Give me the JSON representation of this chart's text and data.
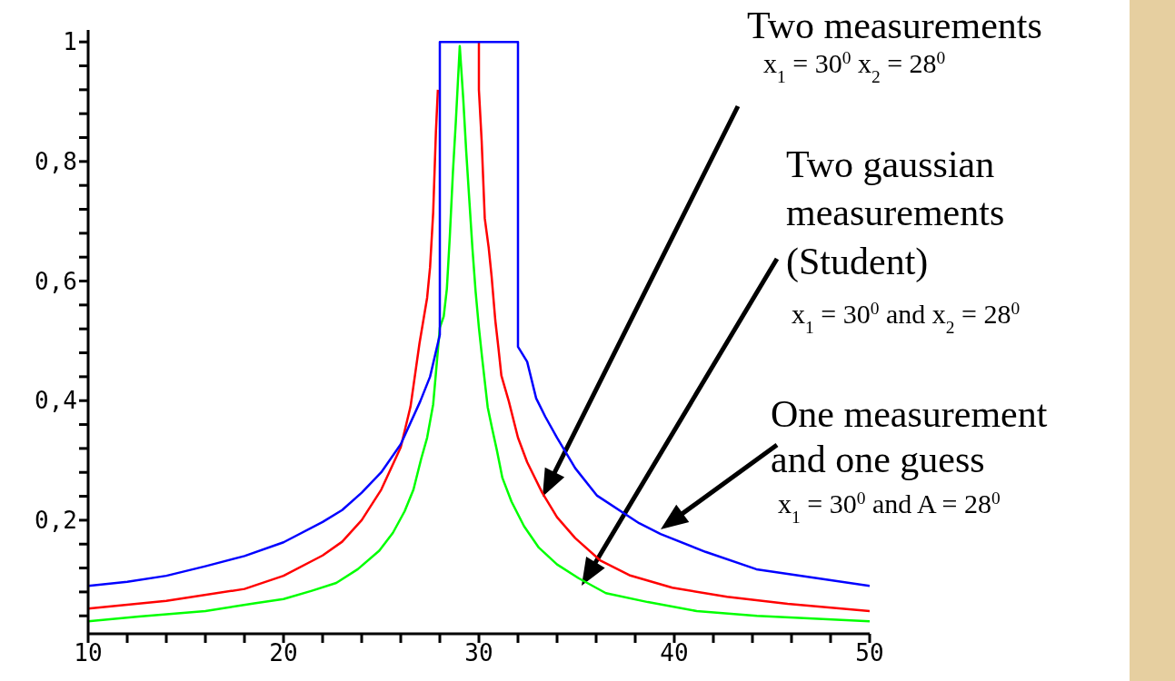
{
  "chart_data": {
    "type": "line",
    "xlim": [
      10,
      50
    ],
    "ylim": [
      0.01,
      1.02
    ],
    "xticks": [
      10,
      {
        "value": 12,
        "label": null
      },
      {
        "value": 14,
        "label": null
      },
      {
        "value": 16,
        "label": null
      },
      {
        "value": 18,
        "label": null
      },
      20,
      {
        "value": 22,
        "label": null
      },
      {
        "value": 24,
        "label": null
      },
      {
        "value": 26,
        "label": null
      },
      {
        "value": 28,
        "label": null
      },
      30,
      {
        "value": 32,
        "label": null
      },
      {
        "value": 34,
        "label": null
      },
      {
        "value": 36,
        "label": null
      },
      {
        "value": 38,
        "label": null
      },
      40,
      {
        "value": 42,
        "label": null
      },
      {
        "value": 44,
        "label": null
      },
      {
        "value": 46,
        "label": null
      },
      {
        "value": 48,
        "label": null
      },
      50
    ],
    "yticks": [
      {
        "value": 0.04,
        "label": null
      },
      {
        "value": 0.08,
        "label": null
      },
      {
        "value": 0.12,
        "label": null
      },
      {
        "value": 0.16,
        "label": null
      },
      {
        "value": 0.2,
        "label": "0,2"
      },
      {
        "value": 0.24,
        "label": null
      },
      {
        "value": 0.28,
        "label": null
      },
      {
        "value": 0.32,
        "label": null
      },
      {
        "value": 0.36,
        "label": null
      },
      {
        "value": 0.4,
        "label": "0,4"
      },
      {
        "value": 0.44,
        "label": null
      },
      {
        "value": 0.48,
        "label": null
      },
      {
        "value": 0.52,
        "label": null
      },
      {
        "value": 0.56,
        "label": null
      },
      {
        "value": 0.6,
        "label": "0,6"
      },
      {
        "value": 0.64,
        "label": null
      },
      {
        "value": 0.68,
        "label": null
      },
      {
        "value": 0.72,
        "label": null
      },
      {
        "value": 0.76,
        "label": null
      },
      {
        "value": 0.8,
        "label": "0,8"
      },
      {
        "value": 0.84,
        "label": null
      },
      {
        "value": 0.88,
        "label": null
      },
      {
        "value": 0.92,
        "label": null
      },
      {
        "value": 0.96,
        "label": null
      },
      1
    ],
    "series": [
      {
        "color": "#0000ff",
        "x": [
          10,
          12,
          14,
          16,
          18,
          20,
          22,
          23,
          24,
          25,
          26,
          27,
          27.5,
          28,
          28,
          32,
          32,
          32.47,
          32.93,
          33.4,
          34,
          34.93,
          36.05,
          38.2,
          39.3,
          41.6,
          44.2,
          47.3,
          50
        ],
        "values": [
          0.09,
          0.097,
          0.107,
          0.123,
          0.14,
          0.163,
          0.197,
          0.217,
          0.246,
          0.28,
          0.327,
          0.399,
          0.44,
          0.51,
          1,
          1,
          0.49,
          0.465,
          0.404,
          0.373,
          0.338,
          0.287,
          0.241,
          0.195,
          0.177,
          0.147,
          0.118,
          0.103,
          0.09
        ]
      },
      {
        "color": "#ff0000",
        "x": [
          10,
          14,
          18,
          20,
          22,
          23,
          24,
          25,
          26,
          26.5,
          26.96,
          27.35,
          27.5,
          27.66,
          27.8,
          27.9,
          28,
          30,
          30,
          30.14,
          30.3,
          30.5,
          30.65,
          30.84,
          31,
          31.15,
          31.53,
          32,
          32.47,
          33.24,
          34,
          34.93,
          36.2,
          37.7,
          39.9,
          42.7,
          45.8,
          50
        ],
        "values": [
          0.052,
          0.065,
          0.085,
          0.107,
          0.141,
          0.164,
          0.2,
          0.251,
          0.322,
          0.39,
          0.496,
          0.572,
          0.623,
          0.715,
          0.85,
          0.92,
          null,
          1,
          0.92,
          0.835,
          0.705,
          0.656,
          0.608,
          0.534,
          0.488,
          0.442,
          0.399,
          0.338,
          0.297,
          0.246,
          0.205,
          0.17,
          0.133,
          0.108,
          0.087,
          0.072,
          0.06,
          0.048
        ]
      },
      {
        "color": "#00ff00",
        "x": [
          10,
          12.6,
          16,
          18.5,
          20,
          21.45,
          22.7,
          23.8,
          24.9,
          25.6,
          26.2,
          26.65,
          27.04,
          27.35,
          27.66,
          27.81,
          28,
          28.2,
          28.36,
          28.51,
          28.67,
          28.82,
          29.02,
          29.2,
          29.35,
          29.52,
          29.67,
          29.83,
          30,
          30.17,
          30.45,
          30.68,
          30.92,
          31.2,
          31.67,
          32.31,
          33.07,
          34,
          35.1,
          36.5,
          38.65,
          41.15,
          44.23,
          50
        ],
        "values": [
          0.031,
          0.039,
          0.048,
          0.061,
          0.068,
          0.082,
          0.095,
          0.118,
          0.149,
          0.179,
          0.215,
          0.251,
          0.302,
          0.338,
          0.394,
          0.45,
          0.522,
          0.541,
          0.587,
          0.674,
          0.782,
          0.867,
          0.993,
          0.904,
          0.817,
          0.73,
          0.654,
          0.583,
          0.522,
          0.47,
          0.389,
          0.353,
          0.317,
          0.271,
          0.231,
          0.19,
          0.154,
          0.126,
          0.103,
          0.078,
          0.063,
          0.048,
          0.04,
          0.031
        ]
      }
    ],
    "annotations": [
      "Two measurements",
      "x$_{1}$ = 30$^{0}$ x$_{2}$ = 28$^{0}$",
      "Two gaussian measurements (Student)",
      "x$_{1}$ = 30$^{0}$ and x$_{2}$ = 28$^{0}$",
      "One measurement and one guess",
      "x$_{1}$ = 30$^{0}$ and A = 28$^{0}$"
    ]
  }
}
